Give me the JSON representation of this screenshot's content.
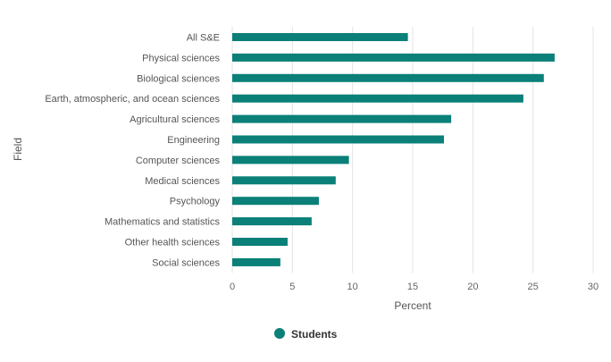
{
  "chart_data": {
    "type": "bar",
    "orientation": "horizontal",
    "categories": [
      "All S&E",
      "Physical sciences",
      "Biological sciences",
      "Earth, atmospheric, and ocean sciences",
      "Agricultural sciences",
      "Engineering",
      "Computer sciences",
      "Medical sciences",
      "Psychology",
      "Mathematics and statistics",
      "Other health sciences",
      "Social sciences"
    ],
    "series": [
      {
        "name": "Students",
        "values": [
          14.6,
          26.8,
          25.9,
          24.2,
          18.2,
          17.6,
          9.7,
          8.6,
          7.2,
          6.6,
          4.6,
          4.0
        ]
      }
    ],
    "xlabel": "Percent",
    "ylabel": "Field",
    "xlim": [
      0,
      30
    ],
    "xticks": [
      "0",
      "5",
      "10",
      "15",
      "20",
      "25",
      "30"
    ],
    "grid": true,
    "legend_position": "bottom",
    "color": "#0a8078"
  }
}
